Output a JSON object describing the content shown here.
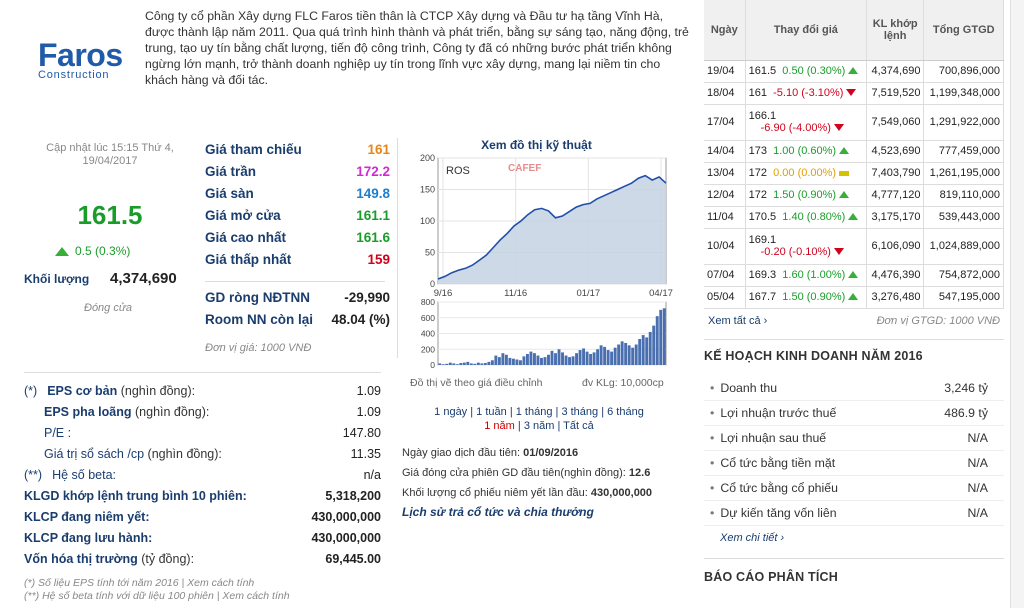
{
  "logo": {
    "name": "Faros",
    "sub": "Construction"
  },
  "description": "Công ty cổ phần Xây dựng FLC Faros tiền thân là CTCP Xây dựng và Đầu tư hạ tầng Vĩnh Hà, được thành lập năm 2011. Qua quá trình hình thành và phát triển, bằng sự sáng tạo, năng động, trẻ trung, tạo uy tín bằng chất lượng, tiến độ công trình, Công ty đã có những bước phát triển không ngừng lớn mạnh, trở thành doanh nghiệp uy tín trong lĩnh vực xây dựng, mang lại niềm tin cho khách hàng và đối tác.",
  "quote": {
    "update_line1": "Cập nhật lúc 15:15 Thứ 4,",
    "update_line2": "19/04/2017",
    "price": "161.5",
    "change": "0.5 (0.3%)",
    "volume_label": "Khối lượng",
    "volume": "4,374,690",
    "status": "Đóng cửa"
  },
  "prices": [
    {
      "label": "Giá tham chiếu",
      "value": "161",
      "color": "#e8861a"
    },
    {
      "label": "Giá trần",
      "value": "172.2",
      "color": "#d02ad0"
    },
    {
      "label": "Giá sàn",
      "value": "149.8",
      "color": "#1a7fd0"
    },
    {
      "label": "Giá mở cửa",
      "value": "161.1",
      "color": "#1a9c2a"
    },
    {
      "label": "Giá cao nhất",
      "value": "161.6",
      "color": "#1a9c2a"
    },
    {
      "label": "Giá thấp nhất",
      "value": "159",
      "color": "#d0021b"
    }
  ],
  "foreign": [
    {
      "label": "GD ròng NĐTNN",
      "value": "-29,990"
    },
    {
      "label": "Room NN còn lại",
      "value": "48.04 (%)"
    }
  ],
  "unit_note": "Đơn vị giá: 1000 VNĐ",
  "chart": {
    "title": "Xem đồ thị kỹ thuật",
    "ticker": "ROS",
    "watermark": "CAFEF",
    "note_left": "Đồ thị vẽ theo giá điều chỉnh",
    "note_right": "đv KLg: 10,000cp"
  },
  "chart_data": {
    "type": "line",
    "title": "Xem đồ thị kỹ thuật",
    "series": [
      {
        "name": "ROS",
        "x_ticks": [
          "9/16",
          "11/16",
          "01/17",
          "04/17"
        ],
        "values": [
          8,
          12,
          18,
          22,
          25,
          30,
          38,
          46,
          58,
          70,
          80,
          92,
          100,
          110,
          118,
          120,
          116,
          105,
          108,
          115,
          122,
          126,
          128,
          135,
          140,
          145,
          150,
          155,
          160,
          168,
          172,
          165,
          170,
          160
        ]
      }
    ],
    "ylim": [
      0,
      200
    ],
    "yticks": [
      0,
      50,
      100,
      150,
      200
    ],
    "volume": {
      "ylim": [
        0,
        800
      ],
      "yticks": [
        0,
        200,
        400,
        600,
        800
      ],
      "values": [
        20,
        10,
        15,
        30,
        20,
        10,
        25,
        30,
        40,
        20,
        15,
        30,
        20,
        25,
        40,
        60,
        120,
        100,
        150,
        130,
        90,
        80,
        70,
        60,
        110,
        140,
        170,
        150,
        120,
        90,
        100,
        130,
        180,
        150,
        200,
        160,
        120,
        100,
        110,
        150,
        190,
        210,
        170,
        140,
        160,
        200,
        250,
        230,
        190,
        170,
        220,
        260,
        300,
        280,
        250,
        220,
        260,
        330,
        380,
        350,
        420,
        500,
        620,
        700,
        720
      ]
    }
  },
  "periods": {
    "row1": [
      "1 ngày",
      "1 tuần",
      "1 tháng",
      "3 tháng",
      "6 tháng"
    ],
    "row2": [
      "1 năm",
      "3 năm",
      "Tất cả"
    ],
    "active": "1 năm"
  },
  "listing": [
    {
      "label": "Ngày giao dịch đầu tiên:",
      "value": "01/09/2016"
    },
    {
      "label": "Giá đóng cửa phiên GD đầu tiên(nghìn đồng):",
      "value": "12.6"
    },
    {
      "label": "Khối lượng cổ phiếu niêm yết lần đầu:",
      "value": "430,000,000"
    }
  ],
  "dividend_link": "Lịch sử trả cổ tức và chia thưởng",
  "financials": [
    {
      "label": "EPS cơ bản",
      "note": "(nghìn đồng):",
      "prefix": "(*)",
      "value": "1.09",
      "bold": false
    },
    {
      "label": "EPS pha loãng",
      "note": "(nghìn đồng):",
      "prefix": "",
      "value": "1.09",
      "bold": false
    },
    {
      "label": "P/E",
      "note": ":",
      "prefix": "",
      "value": "147.80",
      "bold": false
    },
    {
      "label": "Giá trị sổ sách /cp",
      "note": "(nghìn đồng):",
      "prefix": "",
      "value": "11.35",
      "bold": false
    },
    {
      "label": "Hệ số beta:",
      "note": "",
      "prefix": "(**)",
      "value": "n/a",
      "bold": false
    },
    {
      "label": "KLGD khớp lệnh trung bình 10 phiên:",
      "note": "",
      "prefix": "",
      "value": "5,318,200",
      "bold": true
    },
    {
      "label": "KLCP đang niêm yết:",
      "note": "",
      "prefix": "",
      "value": "430,000,000",
      "bold": true
    },
    {
      "label": "KLCP đang lưu hành:",
      "note": "",
      "prefix": "",
      "value": "430,000,000",
      "bold": true
    },
    {
      "label": "Vốn hóa thị trường",
      "note": "(tỷ đồng):",
      "prefix": "",
      "value": "69,445.00",
      "bold": true
    }
  ],
  "footnotes": [
    "(*) Số liệu EPS tính tới năm 2016 | Xem cách tính",
    "(**) Hệ số beta tính với dữ liệu 100 phiên | Xem cách tính"
  ],
  "history": {
    "headers": [
      "Ngày",
      "Thay đổi giá",
      "KL khớp lệnh",
      "Tổng GTGD"
    ],
    "rows": [
      {
        "date": "19/04",
        "price": "161.5",
        "change": "0.50 (0.30%)",
        "dir": "up",
        "vol": "4,374,690",
        "val": "700,896,000"
      },
      {
        "date": "18/04",
        "price": "161",
        "change": "-5.10 (-3.10%)",
        "dir": "dn",
        "vol": "7,519,520",
        "val": "1,199,348,000"
      },
      {
        "date": "17/04",
        "price": "166.1",
        "change": "-6.90 (-4.00%)",
        "dir": "dn",
        "vol": "7,549,060",
        "val": "1,291,922,000",
        "wrap": true
      },
      {
        "date": "14/04",
        "price": "173",
        "change": "1.00 (0.60%)",
        "dir": "up",
        "vol": "4,523,690",
        "val": "777,459,000"
      },
      {
        "date": "13/04",
        "price": "172",
        "change": "0.00 (0.00%)",
        "dir": "ne",
        "vol": "7,403,790",
        "val": "1,261,195,000"
      },
      {
        "date": "12/04",
        "price": "172",
        "change": "1.50 (0.90%)",
        "dir": "up",
        "vol": "4,777,120",
        "val": "819,110,000"
      },
      {
        "date": "11/04",
        "price": "170.5",
        "change": "1.40 (0.80%)",
        "dir": "up",
        "vol": "3,175,170",
        "val": "539,443,000"
      },
      {
        "date": "10/04",
        "price": "169.1",
        "change": "-0.20 (-0.10%)",
        "dir": "dn",
        "vol": "6,106,090",
        "val": "1,024,889,000",
        "wrap": true
      },
      {
        "date": "07/04",
        "price": "169.3",
        "change": "1.60 (1.00%)",
        "dir": "up",
        "vol": "4,476,390",
        "val": "754,872,000"
      },
      {
        "date": "05/04",
        "price": "167.7",
        "change": "1.50 (0.90%)",
        "dir": "up",
        "vol": "3,276,480",
        "val": "547,195,000"
      }
    ],
    "see_all": "Xem tất cả",
    "unit": "Đơn vị GTGD: 1000 VNĐ"
  },
  "plan": {
    "title": "KẾ HOẠCH KINH DOANH NĂM 2016",
    "rows": [
      {
        "label": "Doanh thu",
        "value": "3,246 tỷ"
      },
      {
        "label": "Lợi nhuận trước thuế",
        "value": "486.9 tỷ"
      },
      {
        "label": "Lợi nhuận sau thuế",
        "value": "N/A"
      },
      {
        "label": "Cổ tức bằng tiền mặt",
        "value": "N/A"
      },
      {
        "label": "Cổ tức bằng cổ phiếu",
        "value": "N/A"
      },
      {
        "label": "Dự kiến tăng vốn liên",
        "value": "N/A"
      }
    ],
    "detail": "Xem chi tiết"
  },
  "report_title": "BÁO CÁO PHÂN TÍCH"
}
